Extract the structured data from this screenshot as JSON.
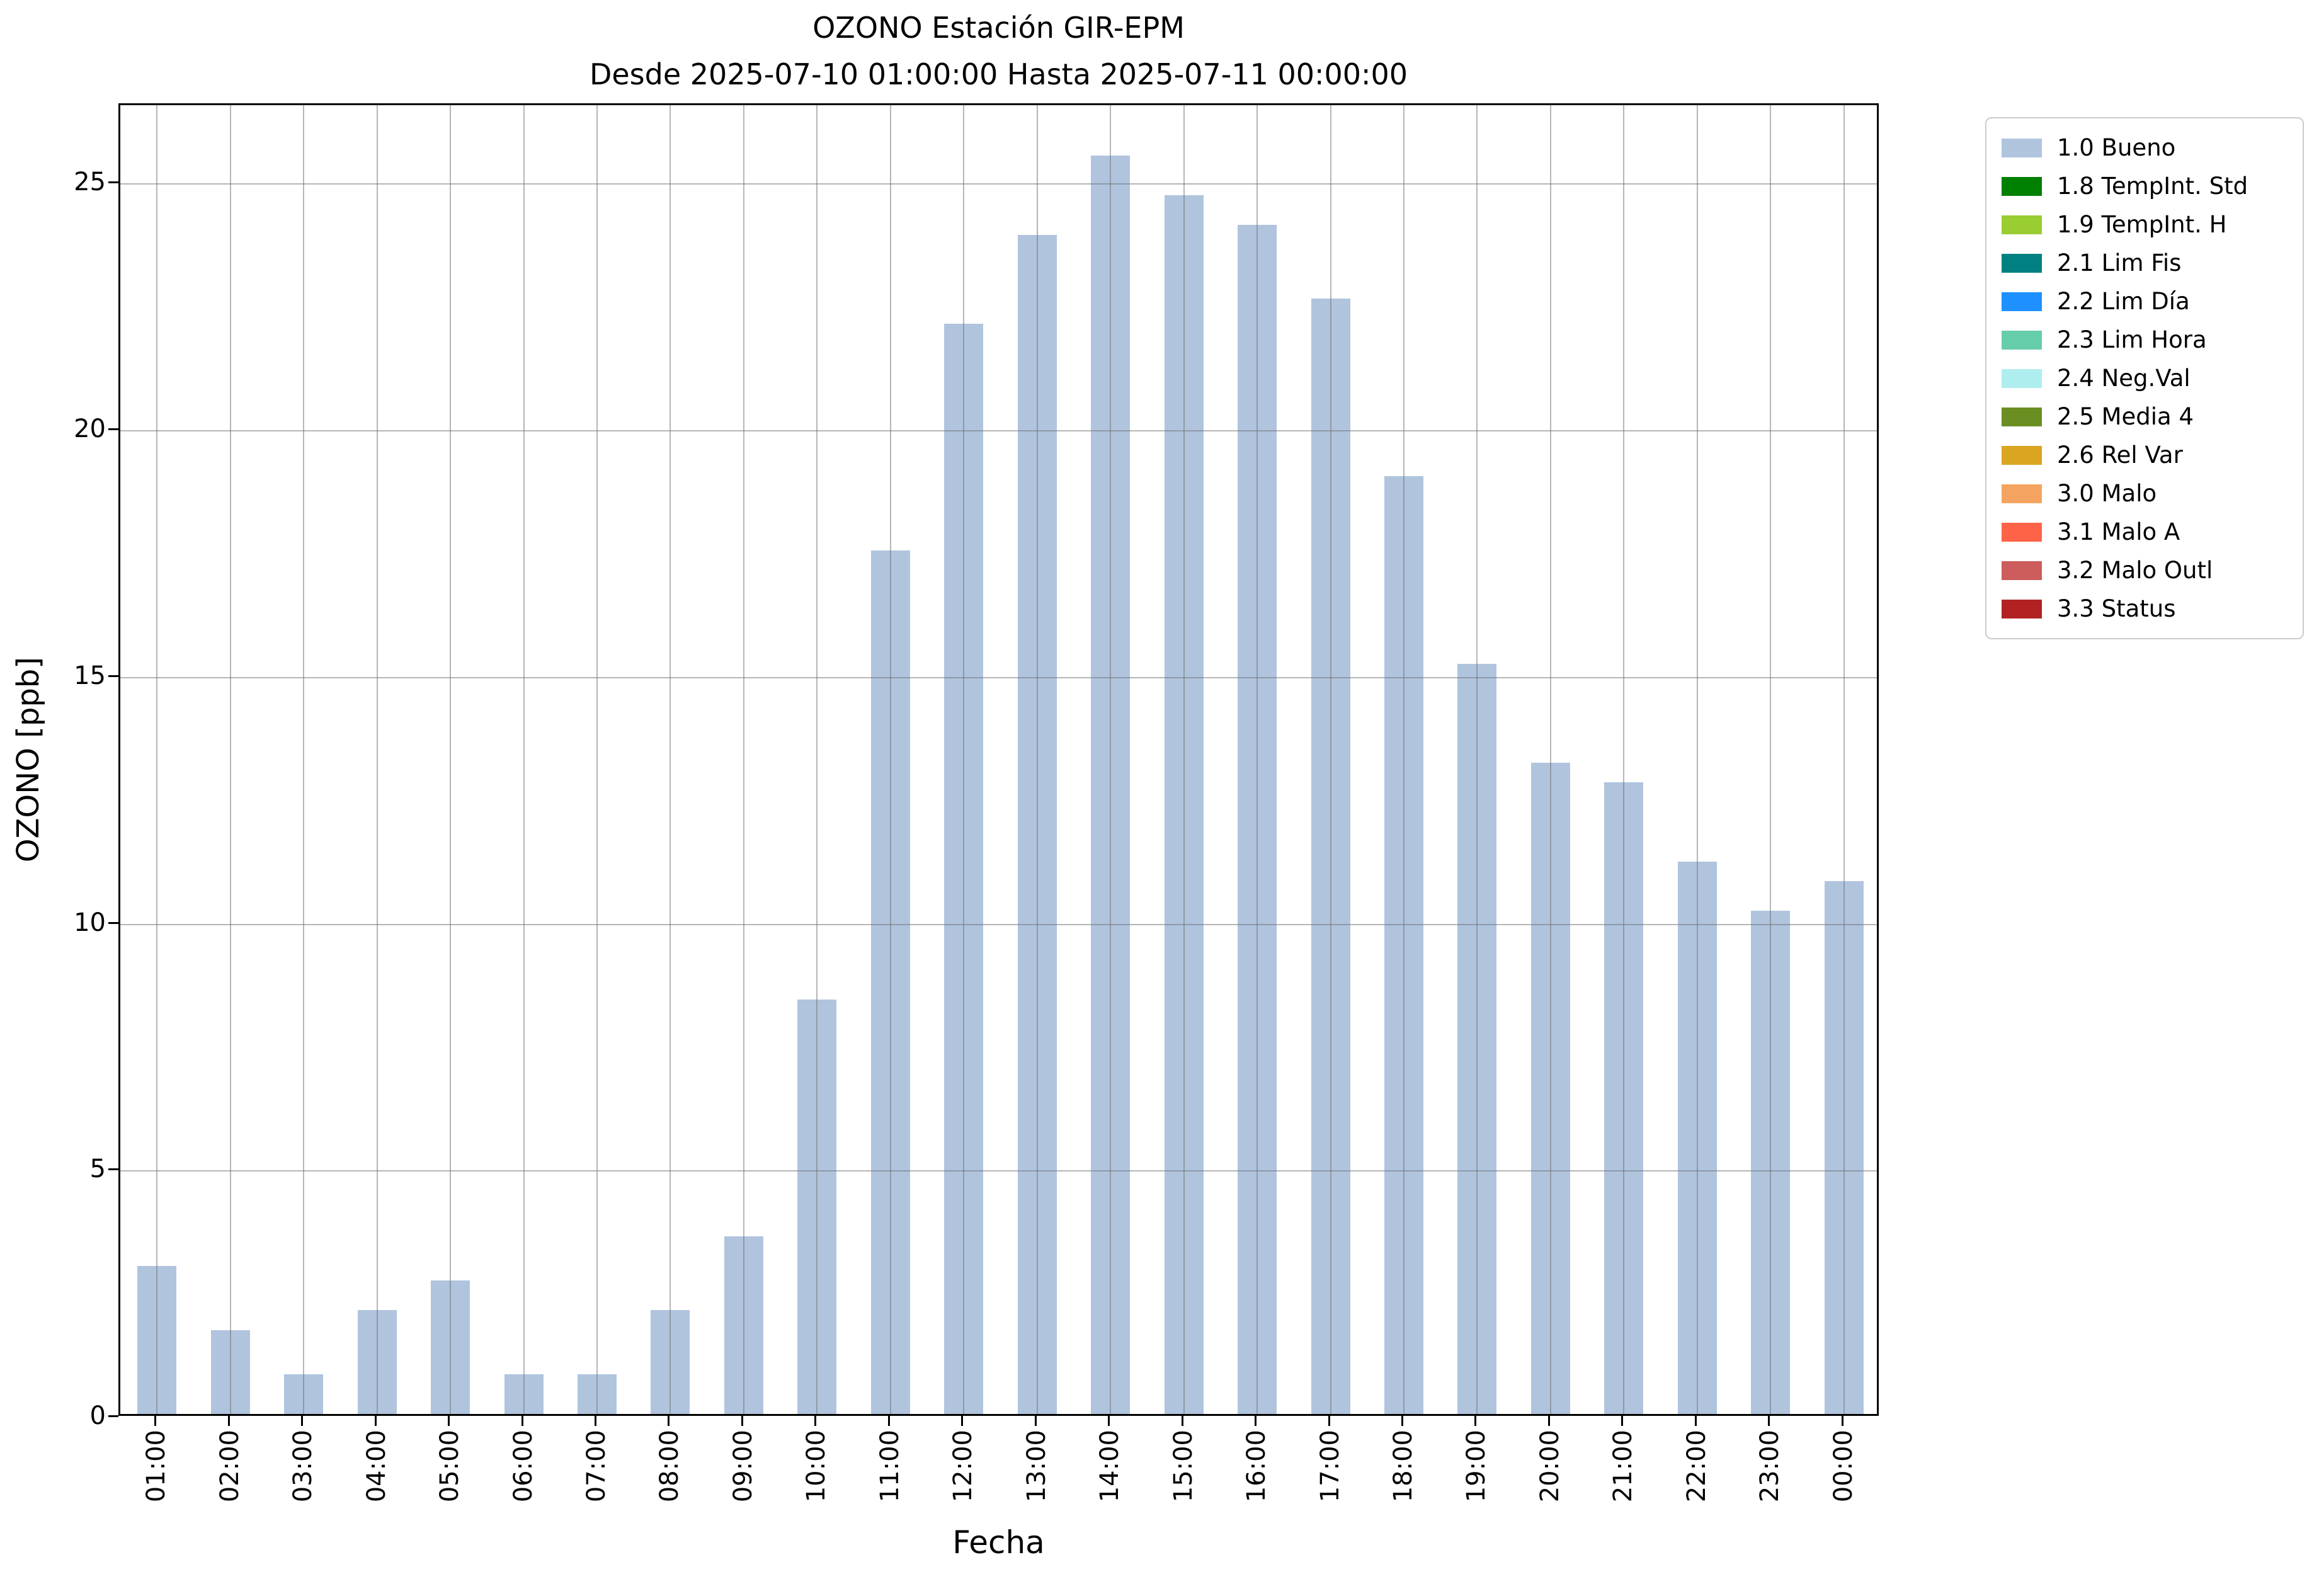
{
  "chart_data": {
    "type": "bar",
    "title": "OZONO Estación GIR-EPM",
    "subtitle": "Desde 2025-07-10 01:00:00 Hasta 2025-07-11 00:00:00",
    "xlabel": "Fecha",
    "ylabel": "OZONO [ppb]",
    "categories": [
      "01:00",
      "02:00",
      "03:00",
      "04:00",
      "05:00",
      "06:00",
      "07:00",
      "08:00",
      "09:00",
      "10:00",
      "11:00",
      "12:00",
      "13:00",
      "14:00",
      "15:00",
      "16:00",
      "17:00",
      "18:00",
      "19:00",
      "20:00",
      "21:00",
      "22:00",
      "23:00",
      "00:00"
    ],
    "values": [
      3.0,
      1.7,
      0.8,
      2.1,
      2.7,
      0.8,
      0.8,
      2.1,
      3.6,
      8.4,
      17.5,
      22.1,
      23.9,
      25.5,
      24.7,
      24.1,
      22.6,
      19.0,
      15.2,
      13.2,
      12.8,
      11.2,
      10.2,
      10.8
    ],
    "yticks": [
      0,
      5,
      10,
      15,
      20,
      25
    ],
    "ylim": [
      0,
      26.6
    ],
    "grid": true,
    "bar_color": "#b0c4de",
    "legend_position": "top-right-outside",
    "legend": [
      {
        "label": "1.0 Bueno",
        "color": "#b0c4de"
      },
      {
        "label": "1.8 TempInt. Std",
        "color": "#008000"
      },
      {
        "label": "1.9 TempInt. H",
        "color": "#9acd32"
      },
      {
        "label": "2.1 Lim Fis",
        "color": "#008080"
      },
      {
        "label": "2.2 Lim Día",
        "color": "#1e90ff"
      },
      {
        "label": "2.3 Lim Hora",
        "color": "#66cdaa"
      },
      {
        "label": "2.4 Neg.Val",
        "color": "#afeeee"
      },
      {
        "label": "2.5 Media 4",
        "color": "#6b8e23"
      },
      {
        "label": "2.6 Rel Var",
        "color": "#daa520"
      },
      {
        "label": "3.0 Malo",
        "color": "#f4a460"
      },
      {
        "label": "3.1 Malo A",
        "color": "#ff6347"
      },
      {
        "label": "3.2 Malo Outl",
        "color": "#cd5c5c"
      },
      {
        "label": "3.3 Status",
        "color": "#b22222"
      }
    ]
  }
}
